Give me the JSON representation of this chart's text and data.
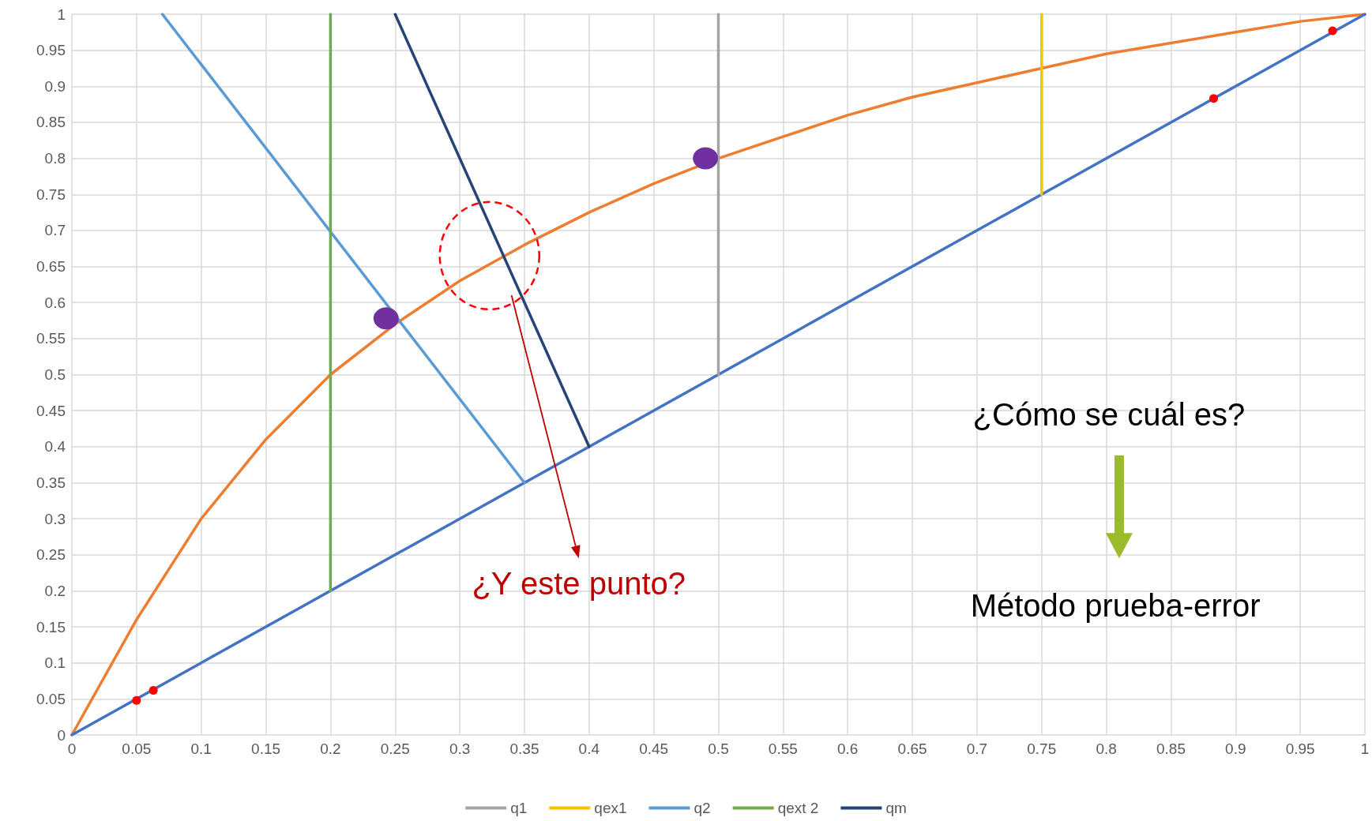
{
  "chart_data": {
    "type": "line",
    "xlim": [
      0,
      1
    ],
    "ylim": [
      0,
      1
    ],
    "xticks": [
      0,
      0.05,
      0.1,
      0.15,
      0.2,
      0.25,
      0.3,
      0.35,
      0.4,
      0.45,
      0.5,
      0.55,
      0.6,
      0.65,
      0.7,
      0.75,
      0.8,
      0.85,
      0.9,
      0.95,
      1
    ],
    "yticks": [
      0,
      0.05,
      0.1,
      0.15,
      0.2,
      0.25,
      0.3,
      0.35,
      0.4,
      0.45,
      0.5,
      0.55,
      0.6,
      0.65,
      0.7,
      0.75,
      0.8,
      0.85,
      0.9,
      0.95,
      1
    ],
    "grid": true,
    "legend": "bottom",
    "marker": "none",
    "line_style": "solid",
    "series": [
      {
        "color": "#ed7d31",
        "x": [
          0,
          0.05,
          0.1,
          0.15,
          0.2,
          0.25,
          0.3,
          0.35,
          0.4,
          0.45,
          0.5,
          0.55,
          0.6,
          0.65,
          0.7,
          0.75,
          0.8,
          0.85,
          0.9,
          0.95,
          1
        ],
        "values": [
          0,
          0.16,
          0.3,
          0.41,
          0.5,
          0.57,
          0.63,
          0.68,
          0.725,
          0.765,
          0.8,
          0.83,
          0.86,
          0.885,
          0.905,
          0.925,
          0.945,
          0.96,
          0.975,
          0.99,
          1
        ]
      },
      {
        "color": "#4472c4",
        "x": [
          0,
          1
        ],
        "values": [
          0,
          1
        ]
      },
      {
        "name": "q1",
        "color": "#a5a5a5",
        "x": [
          0.5,
          0.5
        ],
        "values": [
          0.5,
          1
        ]
      },
      {
        "name": "qex1",
        "color": "#ffc000",
        "x": [
          0.75,
          0.75
        ],
        "values": [
          0.75,
          1
        ]
      },
      {
        "name": "q2",
        "color": "#5b9bd5",
        "x": [
          0.35,
          0.07
        ],
        "values": [
          0.35,
          1
        ]
      },
      {
        "name": "qext 2",
        "color": "#70ad47",
        "x": [
          0.2,
          0.2
        ],
        "values": [
          0.2,
          1
        ]
      },
      {
        "name": "qm",
        "color": "#264478",
        "x": [
          0.4,
          0.25
        ],
        "values": [
          0.4,
          1
        ]
      },
      {
        "type": "scatter",
        "marker": "circle",
        "color": "#7030a0",
        "x": [
          0.243,
          0.49
        ],
        "values": [
          0.578,
          0.8
        ]
      },
      {
        "type": "scatter",
        "marker": "circle",
        "color": "#ff0000",
        "x": [
          0.05,
          0.063,
          0.883,
          0.975
        ],
        "values": [
          0.048,
          0.062,
          0.883,
          0.977
        ]
      }
    ],
    "annotations": [
      "¿Cómo se cuál es?",
      "Método prueba-error",
      "¿Y este punto?"
    ]
  }
}
